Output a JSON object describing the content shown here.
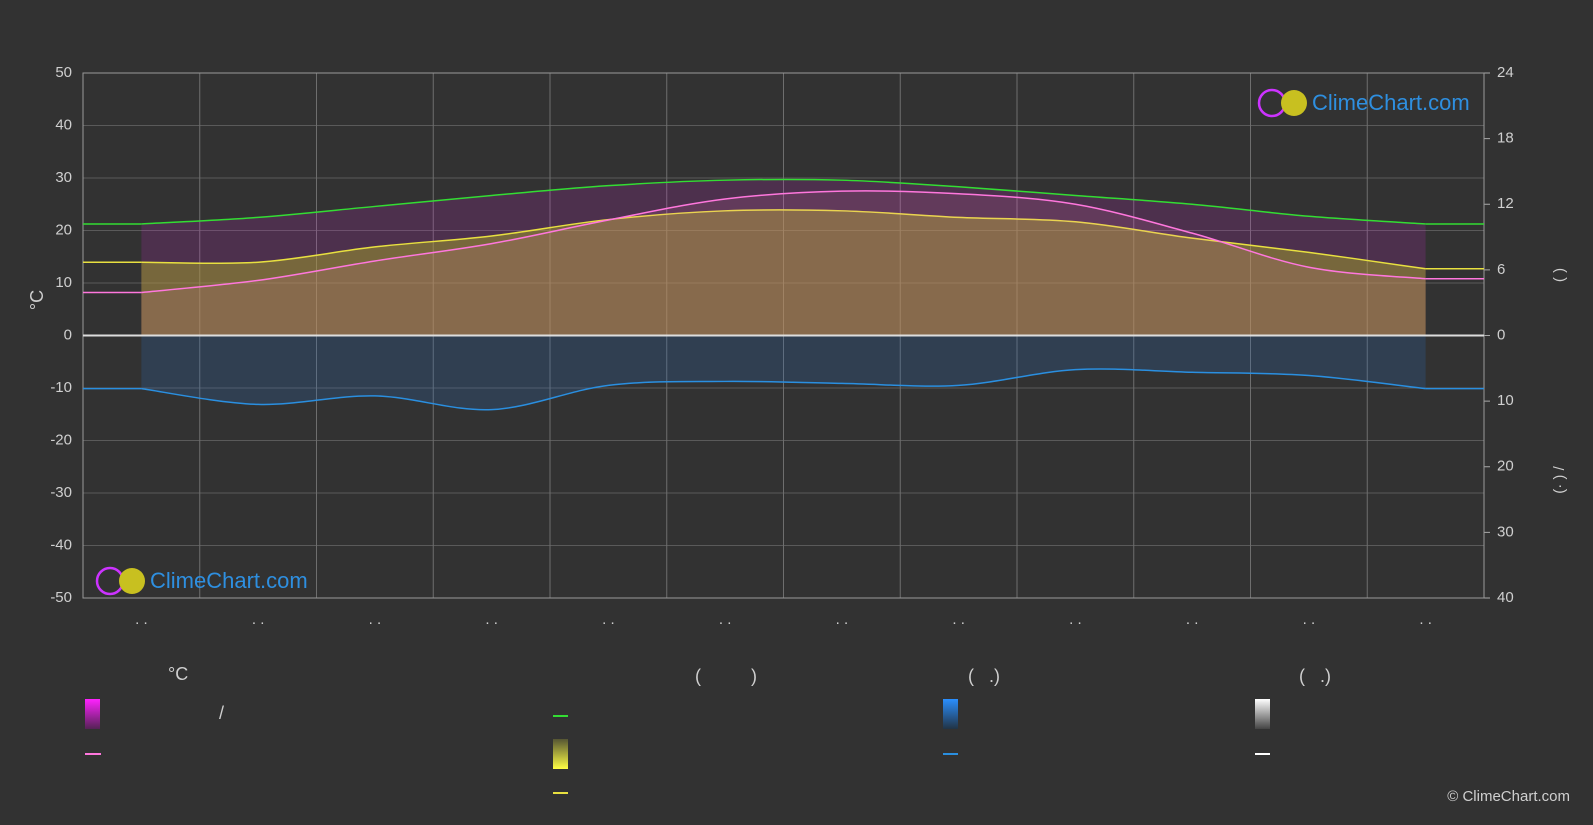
{
  "chart_data": {
    "type": "line",
    "categories": [
      ". .",
      ". .",
      ". .",
      ". .",
      ". .",
      ". .",
      ". .",
      ". .",
      ". .",
      ". .",
      ". .",
      ". ."
    ],
    "ylabel": "°C",
    "y2label": "(      )",
    "y3label": "(· )   /",
    "ylim": [
      -50,
      50
    ],
    "yticks": [
      -50,
      -40,
      -30,
      -20,
      -10,
      0,
      10,
      20,
      30,
      40,
      50
    ],
    "y2lim": [
      0,
      24
    ],
    "y2ticks": [
      0,
      6,
      12,
      18,
      24
    ],
    "y3lim": [
      0,
      40
    ],
    "y3ticks": [
      10,
      20,
      30,
      40
    ],
    "grid": true,
    "series": [
      {
        "color": "#33dd33",
        "axis": "y2",
        "values": [
          10.2,
          10.8,
          11.8,
          12.8,
          13.7,
          14.2,
          14.2,
          13.6,
          12.8,
          12.0,
          10.9,
          10.2
        ]
      },
      {
        "color": "#e8e040",
        "axis": "y2",
        "values": [
          6.7,
          6.7,
          8.1,
          9.1,
          10.6,
          11.4,
          11.4,
          10.8,
          10.4,
          8.9,
          7.6,
          6.1
        ]
      },
      {
        "color": "#ff77dd",
        "axis": "y",
        "values": [
          8.2,
          10.5,
          14.2,
          17.5,
          22,
          26,
          27.5,
          27,
          25,
          19.5,
          13,
          10.8
        ]
      },
      {
        "color": "#2a8fe0",
        "axis": "y3",
        "values": [
          8.1,
          10.5,
          9.2,
          11.3,
          7.6,
          7.0,
          7.3,
          7.6,
          5.2,
          5.6,
          6.1,
          8.1
        ]
      }
    ]
  },
  "legend_headers": [
    "°C",
    "(          )",
    "(   .)",
    "(   .)"
  ],
  "legend_slash": "/",
  "watermark": "ClimeChart.com",
  "copyright": "© ClimeChart.com"
}
